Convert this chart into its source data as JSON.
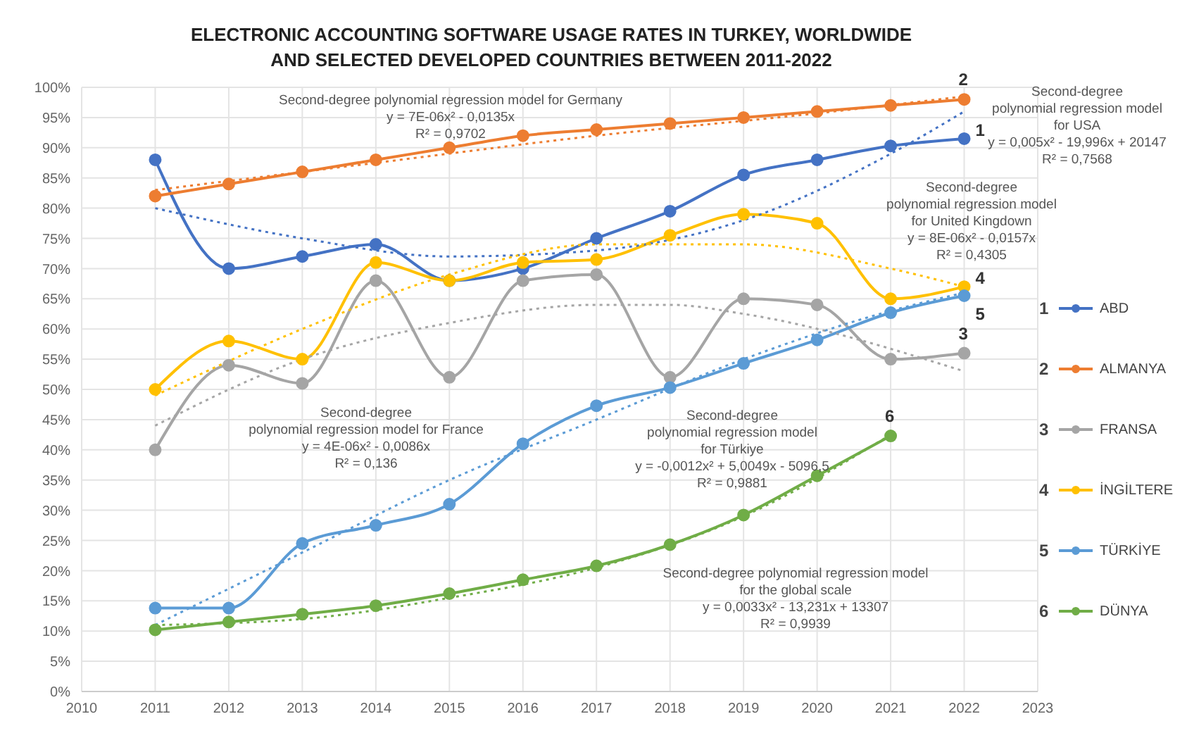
{
  "chart_data": {
    "type": "line",
    "title": "ELECTRONIC ACCOUNTING SOFTWARE USAGE RATES IN TURKEY, WORLDWIDE\nAND SELECTED DEVELOPED COUNTRIES BETWEEN 2011-2022",
    "x": [
      2011,
      2012,
      2013,
      2014,
      2015,
      2016,
      2017,
      2018,
      2019,
      2020,
      2021,
      2022
    ],
    "xlim": [
      2010,
      2023
    ],
    "xticks": [
      2010,
      2011,
      2012,
      2013,
      2014,
      2015,
      2016,
      2017,
      2018,
      2019,
      2020,
      2021,
      2022,
      2023
    ],
    "ylim": [
      0,
      100
    ],
    "yticks": [
      {
        "value": 0,
        "label": "0%"
      },
      {
        "value": 5,
        "label": "5%"
      },
      {
        "value": 10,
        "label": "10%"
      },
      {
        "value": 15,
        "label": "15%"
      },
      {
        "value": 20,
        "label": "20%"
      },
      {
        "value": 25,
        "label": "25%"
      },
      {
        "value": 30,
        "label": "30%"
      },
      {
        "value": 35,
        "label": "35%"
      },
      {
        "value": 40,
        "label": "40%"
      },
      {
        "value": 45,
        "label": "45%"
      },
      {
        "value": 50,
        "label": "50%"
      },
      {
        "value": 55,
        "label": "55%"
      },
      {
        "value": 60,
        "label": "60%"
      },
      {
        "value": 65,
        "label": "65%"
      },
      {
        "value": 70,
        "label": "70%"
      },
      {
        "value": 75,
        "label": "75%"
      },
      {
        "value": 80,
        "label": "80%"
      },
      {
        "value": 85,
        "label": "85%"
      },
      {
        "value": 90,
        "label": "90%"
      },
      {
        "value": 95,
        "label": "95%"
      },
      {
        "value": 100,
        "label": "100%"
      }
    ],
    "grid": true,
    "legend": "right",
    "marker": "circle",
    "line_style": "solid",
    "series": [
      {
        "name": "ABD",
        "color": "#4472c4",
        "values": [
          88,
          70,
          72,
          74,
          68,
          70,
          75,
          79.5,
          85.5,
          88,
          90.3,
          91.5
        ]
      },
      {
        "name": "ALMANYA",
        "color": "#ed7d31",
        "values": [
          82,
          84,
          86,
          88,
          90,
          92,
          93,
          94,
          95,
          96,
          97,
          98
        ]
      },
      {
        "name": "FRANSA",
        "color": "#a5a5a5",
        "values": [
          40,
          54,
          51,
          68,
          52,
          68,
          69,
          52,
          65,
          64,
          55,
          56
        ]
      },
      {
        "name": "İNGİLTERE",
        "color": "#ffc000",
        "values": [
          50,
          58,
          55,
          71,
          68,
          71,
          71.5,
          75.5,
          79,
          77.5,
          65,
          67
        ]
      },
      {
        "name": "TÜRKİYE",
        "color": "#5b9bd5",
        "values": [
          13.8,
          13.8,
          24.5,
          27.5,
          31,
          41,
          47.3,
          50.3,
          54.3,
          58.2,
          62.7,
          65.5
        ]
      },
      {
        "name": "DÜNYA",
        "color": "#70ad47",
        "values": [
          10.2,
          11.5,
          12.8,
          14.2,
          16.2,
          18.5,
          20.8,
          24.3,
          29.2,
          35.7,
          42.3,
          null
        ]
      },
      {
        "type": "line",
        "color": "#4472c4",
        "line_style": "dotted",
        "marker": "none",
        "x": [
          2011,
          2013,
          2015,
          2017,
          2019,
          2021,
          2022
        ],
        "values": [
          80,
          75,
          72,
          73,
          78,
          89,
          96
        ]
      },
      {
        "type": "line",
        "color": "#ed7d31",
        "line_style": "dotted",
        "marker": "none",
        "x": [
          2011,
          2014,
          2017,
          2020,
          2022
        ],
        "values": [
          83,
          87.5,
          92,
          95.7,
          98.5
        ]
      },
      {
        "type": "line",
        "color": "#a5a5a5",
        "line_style": "dotted",
        "marker": "none",
        "x": [
          2011,
          2013,
          2015,
          2017,
          2018,
          2019,
          2022
        ],
        "values": [
          44,
          55,
          61,
          64,
          64,
          62.5,
          53
        ]
      },
      {
        "type": "line",
        "color": "#ffc000",
        "line_style": "dotted",
        "marker": "none",
        "x": [
          2011,
          2013,
          2015,
          2017,
          2019,
          2021,
          2022
        ],
        "values": [
          49,
          60,
          69,
          74,
          74,
          70,
          67
        ]
      },
      {
        "type": "line",
        "color": "#5b9bd5",
        "line_style": "dotted",
        "marker": "none",
        "x": [
          2011,
          2013,
          2015,
          2017,
          2019,
          2021,
          2022
        ],
        "values": [
          11,
          23,
          35,
          45,
          55,
          63,
          66
        ]
      },
      {
        "type": "line",
        "color": "#70ad47",
        "line_style": "dotted",
        "marker": "none",
        "x": [
          2011,
          2013,
          2015,
          2017,
          2019,
          2021
        ],
        "values": [
          11,
          12,
          15.5,
          20.5,
          29,
          42.5
        ]
      }
    ],
    "annotations": [
      "Second-degree polynomial regression model for Germany\ny = 7E-06x² - 0,0135x\nR² = 0,9702",
      "Second-degree\npolynomial regression model\nfor USA\ny = 0,005x² - 19,996x + 20147\nR² = 0,7568",
      "Second-degree\npolynomial regression model\nfor United Kingdown\ny = 8E-06x² - 0,0157x\nR² = 0,4305",
      "Second-degree\npolynomial regression model for France\ny = 4E-06x² - 0,0086x\nR² = 0,136",
      "Second-degree\npolynomial regression model\nfor Türkiye\ny = -0,0012x² + 5,0049x - 5096,5\nR² = 0,9881",
      "Second-degree polynomial regression model\nfor the global scale\ny = 0,0033x² - 13,231x + 13307\nR² = 0,9939",
      "1",
      "2",
      "3",
      "4",
      "5",
      "6"
    ]
  }
}
